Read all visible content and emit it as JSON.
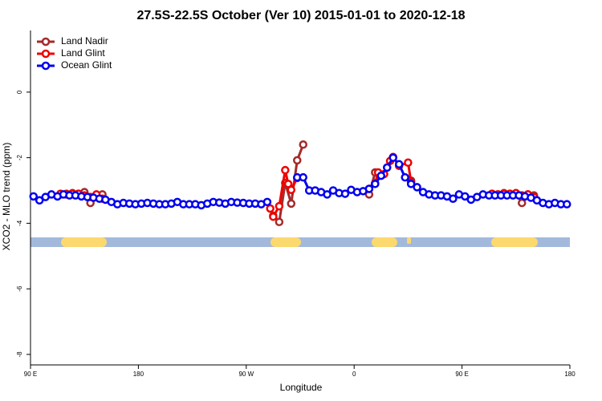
{
  "chart_data": {
    "type": "line",
    "title": "27.5S-22.5S October (Ver 10)   2015-01-01 to 2020-12-18",
    "x_label": "Longitude",
    "y_label": "XCO2 - MLO trend (ppm)",
    "xlim": [
      90,
      540
    ],
    "ylim": [
      -8.32,
      1.88
    ],
    "xticks": [
      {
        "value": 90,
        "label": "90 E"
      },
      180,
      {
        "value": 270,
        "label": "90 W"
      },
      {
        "value": 360,
        "label": "0"
      },
      {
        "value": 450,
        "label": "90 E"
      },
      {
        "value": 540,
        "label": "180"
      }
    ],
    "yticks": [
      0,
      -2,
      -4,
      -6,
      -8
    ],
    "legend": "top-left",
    "series": [
      {
        "name": "Land Nadir",
        "color": "#a52a2a",
        "x": [
          115,
          120,
          125,
          130,
          135,
          140,
          145,
          150,
          200,
          292.5,
          297.5,
          302.5,
          307.5,
          312.5,
          317.5,
          340,
          372.5,
          377.5,
          390,
          407.5,
          440,
          475,
          480,
          485,
          490,
          495,
          500,
          505,
          510
        ],
        "values": [
          -3.12,
          -3.1,
          -3.08,
          -3.1,
          -3.05,
          -3.38,
          -3.15,
          -3.12,
          null,
          -3.77,
          -3.96,
          -2.77,
          -3.4,
          -2.08,
          -1.6,
          null,
          -3.12,
          -2.45,
          null,
          -2.7,
          null,
          -3.1,
          -3.12,
          -3.08,
          -3.1,
          -3.1,
          -3.38,
          -3.12,
          -3.15
        ]
      },
      {
        "name": "Land Glint",
        "color": "#ee0000",
        "x": [
          115,
          120,
          125,
          130,
          135,
          140,
          145,
          150,
          200,
          290,
          292.5,
          297.5,
          302.5,
          305,
          307.5,
          312.5,
          340,
          372.5,
          377.5,
          380,
          385,
          390,
          392.5,
          397.5,
          405,
          407.5,
          440,
          475,
          480,
          485,
          490,
          495,
          500,
          505,
          510
        ],
        "values": [
          -3.1,
          -3.12,
          -3.1,
          -3.1,
          -3.15,
          -3.2,
          -3.12,
          -3.25,
          null,
          -3.55,
          -3.8,
          -3.48,
          -2.38,
          -2.8,
          -2.98,
          -2.62,
          null,
          -2.95,
          -2.78,
          -2.45,
          -2.5,
          -2.1,
          -1.98,
          -2.25,
          -2.15,
          -2.75,
          null,
          -3.1,
          -3.12,
          -3.1,
          -3.1,
          -3.08,
          -3.15,
          -3.12,
          -3.2
        ]
      },
      {
        "name": "Ocean Glint",
        "color": "#0000ee",
        "x": [
          92.5,
          97.5,
          102.5,
          107.5,
          112.5,
          117.5,
          122.5,
          127.5,
          132.5,
          137.5,
          142.5,
          147.5,
          152.5,
          157.5,
          162.5,
          167.5,
          172.5,
          177.5,
          182.5,
          187.5,
          192.5,
          197.5,
          202.5,
          207.5,
          212.5,
          217.5,
          222.5,
          227.5,
          232.5,
          237.5,
          242.5,
          247.5,
          252.5,
          257.5,
          262.5,
          267.5,
          272.5,
          277.5,
          282.5,
          287.5,
          292.5,
          297.5,
          302.5,
          307.5,
          312.5,
          317.5,
          322.5,
          327.5,
          332.5,
          337.5,
          342.5,
          347.5,
          352.5,
          357.5,
          362.5,
          367.5,
          372.5,
          377.5,
          382.5,
          387.5,
          392.5,
          397.5,
          402.5,
          407.5,
          412.5,
          417.5,
          422.5,
          427.5,
          432.5,
          437.5,
          442.5,
          447.5,
          452.5,
          457.5,
          462.5,
          467.5,
          472.5,
          477.5,
          482.5,
          487.5,
          492.5,
          497.5,
          502.5,
          507.5,
          512.5,
          517.5,
          522.5,
          527.5,
          532.5,
          537.5
        ],
        "values": [
          -3.18,
          -3.3,
          -3.2,
          -3.12,
          -3.18,
          -3.12,
          -3.15,
          -3.15,
          -3.18,
          -3.2,
          -3.22,
          -3.25,
          -3.28,
          -3.35,
          -3.42,
          -3.38,
          -3.4,
          -3.42,
          -3.4,
          -3.38,
          -3.4,
          -3.42,
          -3.42,
          -3.4,
          -3.35,
          -3.42,
          -3.42,
          -3.42,
          -3.45,
          -3.4,
          -3.35,
          -3.37,
          -3.4,
          -3.35,
          -3.37,
          -3.38,
          -3.4,
          -3.4,
          -3.42,
          -3.35,
          null,
          null,
          null,
          null,
          -2.6,
          -2.6,
          -3.0,
          -3.0,
          -3.05,
          -3.12,
          -3.0,
          -3.08,
          -3.1,
          -2.98,
          -3.05,
          -3.02,
          -2.95,
          -2.8,
          -2.55,
          -2.3,
          -2.0,
          -2.2,
          -2.6,
          -2.8,
          -2.9,
          -3.05,
          -3.12,
          -3.15,
          -3.15,
          -3.18,
          -3.25,
          -3.12,
          -3.18,
          -3.28,
          -3.2,
          -3.12,
          -3.15,
          -3.15,
          -3.15,
          -3.15,
          -3.15,
          -3.15,
          -3.18,
          -3.22,
          -3.3,
          -3.38,
          -3.42,
          -3.38,
          -3.42,
          -3.42
        ]
      }
    ]
  }
}
